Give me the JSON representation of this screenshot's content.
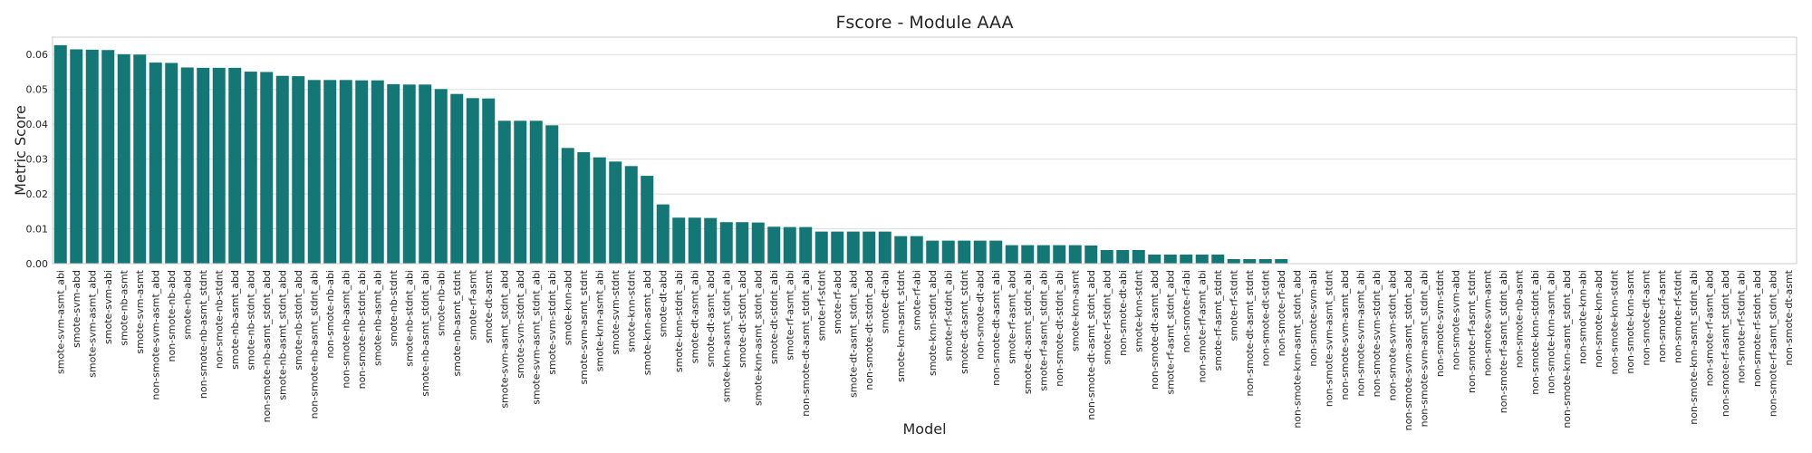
{
  "chart_data": {
    "type": "bar",
    "title": "Fscore - Module AAA",
    "xlabel": "Model",
    "ylabel": "Metric Score",
    "ylim": [
      0,
      0.065
    ],
    "yticks": [
      0.0,
      0.01,
      0.02,
      0.03,
      0.04,
      0.05,
      0.06
    ],
    "ytick_labels": [
      "0.00",
      "0.01",
      "0.02",
      "0.03",
      "0.04",
      "0.05",
      "0.06"
    ],
    "grid": "horizontal",
    "bar_color": "#137776",
    "categories": [
      "smote-svm-asmt_abi",
      "smote-svm-abd",
      "smote-svm-asmt_abd",
      "smote-svm-abi",
      "smote-nb-asmt",
      "smote-svm-asmt",
      "non-smote-svm-asmt_abd",
      "non-smote-nb-abd",
      "smote-nb-abd",
      "non-smote-nb-asmt_stdnt",
      "non-smote-nb-stdnt",
      "smote-nb-asmt_abd",
      "smote-nb-stdnt_abd",
      "non-smote-nb-asmt_stdnt_abd",
      "smote-nb-asmt_stdnt_abd",
      "smote-nb-stdnt_abd",
      "non-smote-nb-asmt_stdnt_abi",
      "non-smote-nb-abi",
      "non-smote-nb-asmt_abi",
      "non-smote-nb-stdnt_abi",
      "smote-nb-asmt_abi",
      "smote-nb-stdnt",
      "smote-nb-stdnt_abi",
      "smote-nb-asmt_stdnt_abi",
      "smote-nb-abi",
      "smote-nb-asmt_stdnt",
      "smote-rf-asmt",
      "smote-dt-asmt",
      "smote-svm-asmt_stdnt_abd",
      "smote-svm-stdnt_abd",
      "smote-svm-asmt_stdnt_abi",
      "smote-svm-stdnt_abi",
      "smote-knn-abd",
      "smote-svm-asmt_stdnt",
      "smote-knn-asmt_abi",
      "smote-svm-stdnt",
      "smote-knn-stdnt",
      "smote-knn-asmt_abd",
      "smote-dt-abd",
      "smote-knn-stdnt_abi",
      "smote-dt-asmt_abi",
      "smote-dt-asmt_abd",
      "smote-knn-asmt_stdnt_abi",
      "smote-dt-stdnt_abd",
      "smote-knn-asmt_stdnt_abd",
      "smote-dt-stdnt_abi",
      "smote-rf-asmt_abi",
      "non-smote-dt-asmt_stdnt_abi",
      "smote-rf-stdnt",
      "smote-rf-abd",
      "smote-dt-asmt_stdnt_abd",
      "non-smote-dt-stdnt_abd",
      "smote-dt-abi",
      "smote-knn-asmt_stdnt",
      "smote-rf-abi",
      "smote-knn-stdnt_abd",
      "smote-rf-stdnt_abi",
      "smote-dt-asmt_stdnt",
      "non-smote-dt-abd",
      "non-smote-dt-asmt_abi",
      "smote-rf-asmt_abd",
      "smote-dt-asmt_stdnt_abi",
      "smote-rf-asmt_stdnt_abi",
      "non-smote-dt-stdnt_abi",
      "smote-knn-asmt",
      "non-smote-dt-asmt_stdnt_abd",
      "smote-rf-stdnt_abd",
      "non-smote-dt-abi",
      "smote-knn-stdnt",
      "non-smote-dt-asmt_abd",
      "smote-rf-asmt_stdnt_abd",
      "non-smote-rf-abi",
      "non-smote-rf-asmt_abi",
      "smote-rf-asmt_stdnt",
      "smote-rf-stdnt",
      "non-smote-dt-asmt_stdnt",
      "non-smote-dt-stdnt",
      "non-smote-rf-abd",
      "non-smote-knn-asmt_stdnt_abd",
      "non-smote-svm-abi",
      "non-smote-svm-asmt_stdnt",
      "non-smote-svm-asmt_abd",
      "non-smote-svm-asmt_abi",
      "non-smote-svm-stdnt_abi",
      "non-smote-svm-stdnt_abd",
      "non-smote-svm-asmt_stdnt_abd",
      "non-smote-svm-asmt_stdnt_abi",
      "non-smote-svm-stdnt",
      "non-smote-svm-abd",
      "non-smote-rf-asmt_stdnt",
      "non-smote-svm-asmt",
      "non-smote-rf-asmt_stdnt_abi",
      "non-smote-nb-asmt",
      "non-smote-knn-stdnt_abi",
      "non-smote-knn-asmt_abi",
      "non-smote-knn-asmt_stdnt_abd",
      "non-smote-knn-abi",
      "non-smote-knn-abd",
      "non-smote-knn-stdnt",
      "non-smote-knn-asmt",
      "non-smote-dt-asmt",
      "non-smote-rf-asmt",
      "non-smote-rf-stdnt",
      "non-smote-knn-asmt_stdnt_abi",
      "non-smote-rf-asmt_abd",
      "non-smote-rf-asmt_stdnt_abd",
      "non-smote-rf-stdnt_abi",
      "non-smote-rf-stdnt_abd",
      "non-smote-rf-asmt_stdnt_abd",
      "non-smote-dt-asmt"
    ],
    "values": [
      0.0627,
      0.0615,
      0.0614,
      0.0613,
      0.0601,
      0.06,
      0.0577,
      0.0576,
      0.0563,
      0.0562,
      0.0562,
      0.0562,
      0.0551,
      0.055,
      0.0539,
      0.0538,
      0.0527,
      0.0527,
      0.0527,
      0.0526,
      0.0526,
      0.0515,
      0.0514,
      0.0514,
      0.0501,
      0.0487,
      0.0475,
      0.0474,
      0.041,
      0.041,
      0.041,
      0.0397,
      0.0332,
      0.032,
      0.0305,
      0.0293,
      0.028,
      0.0252,
      0.017,
      0.0132,
      0.0132,
      0.0131,
      0.0119,
      0.0119,
      0.0118,
      0.0106,
      0.0105,
      0.0105,
      0.0092,
      0.0092,
      0.0092,
      0.0092,
      0.0092,
      0.0079,
      0.0079,
      0.0066,
      0.0066,
      0.0066,
      0.0066,
      0.0066,
      0.0053,
      0.0053,
      0.0053,
      0.0053,
      0.0053,
      0.0052,
      0.0039,
      0.0039,
      0.0039,
      0.0026,
      0.0026,
      0.0026,
      0.0026,
      0.0026,
      0.0013,
      0.0013,
      0.0013,
      0.0013,
      0.0,
      0.0,
      0.0,
      0.0,
      0.0,
      0.0,
      0.0,
      0.0,
      0.0,
      0.0,
      0.0,
      0.0,
      0.0,
      0.0,
      0.0,
      0.0,
      0.0,
      0.0,
      0.0,
      0.0,
      0.0,
      0.0,
      0.0,
      0.0,
      0.0,
      0.0,
      0.0,
      0.0,
      0.0,
      0.0,
      0.0,
      0.0
    ]
  }
}
